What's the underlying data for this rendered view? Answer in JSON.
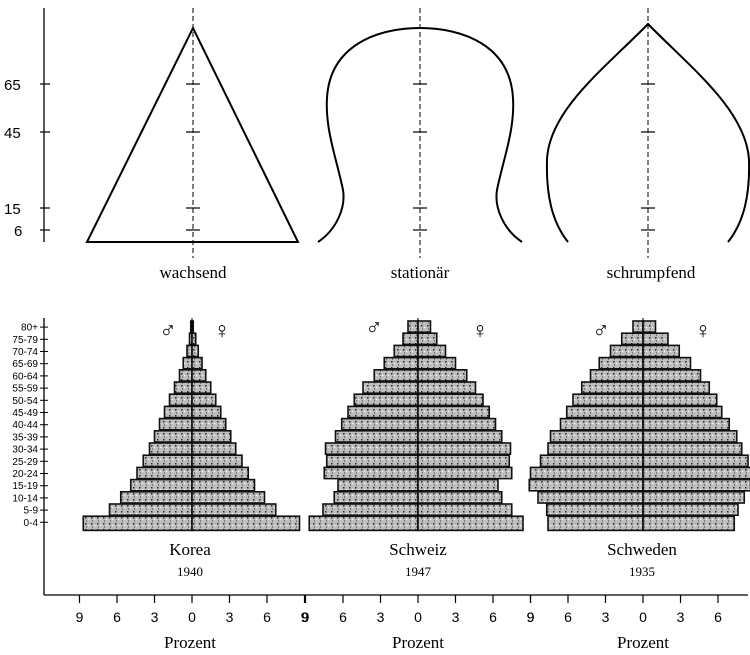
{
  "schematic": {
    "y_ticks": [
      "65",
      "45",
      "15",
      "6"
    ],
    "shapes": [
      {
        "name": "wachsend"
      },
      {
        "name": "stationär"
      },
      {
        "name": "schrumpfend"
      }
    ]
  },
  "age_groups": [
    "80+",
    "75-79",
    "70-74",
    "65-69",
    "60-64",
    "55-59",
    "50-54",
    "45-49",
    "40-44",
    "35-39",
    "30-34",
    "25-29",
    "20-24",
    "15-19",
    "10-14",
    "5-9",
    "0-4"
  ],
  "sex_symbols": {
    "male": "♂",
    "female": "♀"
  },
  "x_ticks": [
    "9",
    "6",
    "3",
    "0",
    "3",
    "6",
    "9"
  ],
  "x_axis_label": "Prozent",
  "chart_data": [
    {
      "type": "bar",
      "title": "Korea",
      "year": "1940",
      "xlabel": "Prozent",
      "xlim": [
        -9,
        9
      ],
      "categories": [
        "80+",
        "75-79",
        "70-74",
        "65-69",
        "60-64",
        "55-59",
        "50-54",
        "45-49",
        "40-44",
        "35-39",
        "30-34",
        "25-29",
        "20-24",
        "15-19",
        "10-14",
        "5-9",
        "0-4"
      ],
      "series": [
        {
          "name": "♂",
          "values": [
            0.1,
            0.2,
            0.4,
            0.7,
            1.0,
            1.4,
            1.8,
            2.2,
            2.6,
            3.0,
            3.4,
            3.9,
            4.4,
            4.9,
            5.7,
            6.6,
            8.7
          ]
        },
        {
          "name": "♀",
          "values": [
            0.1,
            0.3,
            0.5,
            0.8,
            1.1,
            1.5,
            1.9,
            2.3,
            2.7,
            3.1,
            3.5,
            4.0,
            4.5,
            5.0,
            5.8,
            6.7,
            8.6
          ]
        }
      ]
    },
    {
      "type": "bar",
      "title": "Schweiz",
      "year": "1947",
      "xlabel": "Prozent",
      "xlim": [
        -9,
        9
      ],
      "categories": [
        "80+",
        "75-79",
        "70-74",
        "65-69",
        "60-64",
        "55-59",
        "50-54",
        "45-49",
        "40-44",
        "35-39",
        "30-34",
        "25-29",
        "20-24",
        "15-19",
        "10-14",
        "5-9",
        "0-4"
      ],
      "series": [
        {
          "name": "♂",
          "values": [
            0.8,
            1.2,
            1.9,
            2.7,
            3.5,
            4.4,
            5.1,
            5.6,
            6.1,
            6.6,
            7.4,
            7.3,
            7.5,
            6.4,
            6.7,
            7.6,
            8.7
          ]
        },
        {
          "name": "♀",
          "values": [
            1.0,
            1.5,
            2.2,
            3.0,
            3.9,
            4.6,
            5.2,
            5.7,
            6.2,
            6.7,
            7.4,
            7.3,
            7.5,
            6.4,
            6.7,
            7.5,
            8.4
          ]
        }
      ]
    },
    {
      "type": "bar",
      "title": "Schweden",
      "year": "1935",
      "xlabel": "Prozent",
      "xlim": [
        -9,
        9
      ],
      "categories": [
        "80+",
        "75-79",
        "70-74",
        "65-69",
        "60-64",
        "55-59",
        "50-54",
        "45-49",
        "40-44",
        "35-39",
        "30-34",
        "25-29",
        "20-24",
        "15-19",
        "10-14",
        "5-9",
        "0-4"
      ],
      "series": [
        {
          "name": "♂",
          "values": [
            0.8,
            1.7,
            2.6,
            3.5,
            4.2,
            4.9,
            5.6,
            6.1,
            6.6,
            7.4,
            7.6,
            8.2,
            9.0,
            9.1,
            8.4,
            7.7,
            7.6
          ]
        },
        {
          "name": "♀",
          "values": [
            1.0,
            2.0,
            2.9,
            3.8,
            4.6,
            5.3,
            5.9,
            6.3,
            6.9,
            7.5,
            7.9,
            8.4,
            8.8,
            8.6,
            8.1,
            7.6,
            7.3
          ]
        }
      ]
    }
  ]
}
